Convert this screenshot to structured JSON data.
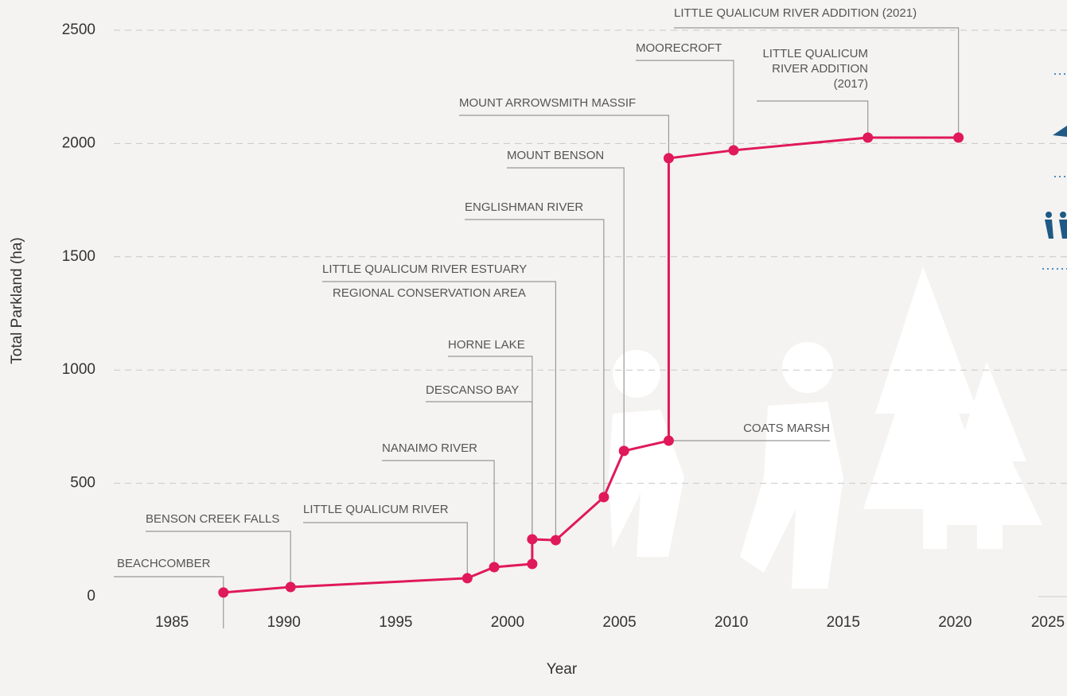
{
  "chart_data": {
    "type": "line",
    "xlabel": "Year",
    "ylabel": "Total Parkland (ha)",
    "xlim": [
      1982.4,
      2025
    ],
    "xticks": [
      1985,
      1990,
      1995,
      2000,
      2005,
      2010,
      2015,
      2020,
      2025
    ],
    "ylim": [
      0,
      2500
    ],
    "yticks": [
      0,
      500,
      1000,
      1500,
      2000,
      2500
    ],
    "grid": true,
    "series": [
      {
        "color": "#e0195a",
        "x": [
          1987.3,
          1990.3,
          1998.2,
          1999.4,
          2001.1,
          2001.1,
          2002.15,
          2004.3,
          2005.2,
          2007.2,
          2007.2,
          2010.1,
          2016.1,
          2020.15
        ],
        "values": [
          18,
          42,
          81,
          130,
          144,
          253,
          249,
          439,
          643,
          688,
          1935,
          1970,
          2026,
          2026
        ]
      }
    ],
    "annotations": [
      [
        "BEACHCOMBER"
      ],
      [
        "BENSON CREEK FALLS"
      ],
      [
        "LITTLE QUALICUM RIVER"
      ],
      [
        "NANAIMO RIVER"
      ],
      [
        "DESCANSO BAY"
      ],
      [
        "HORNE LAKE"
      ],
      [
        "LITTLE QUALICUM RIVER ESTUARY",
        "REGIONAL CONSERVATION AREA"
      ],
      [
        "ENGLISHMAN RIVER"
      ],
      [
        "MOUNT BENSON"
      ],
      [
        "COATS MARSH"
      ],
      [
        "MOUNT ARROWSMITH MASSIF"
      ],
      [
        "MOORECROFT"
      ],
      [
        "LITTLE QUALICUM",
        "RIVER ADDITION",
        "(2017)"
      ],
      [
        "LITTLE QUALICUM RIVER ADDITION (2021)"
      ]
    ]
  }
}
